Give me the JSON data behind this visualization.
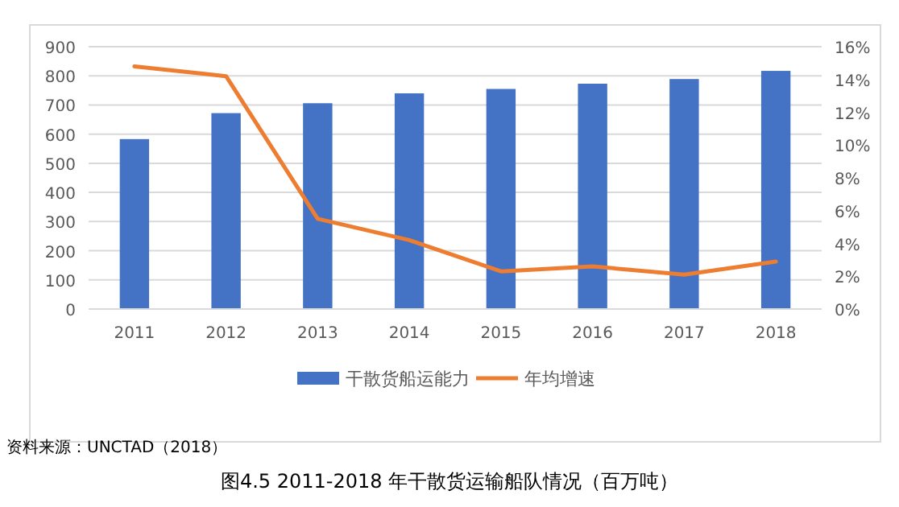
{
  "chart_data": {
    "type": "bar",
    "title": "图4.5 2011-2018 年干散货运输船队情况（百万吨）",
    "annotations": [
      "资料来源：UNCTAD（2018）"
    ],
    "categories": [
      "2011",
      "2012",
      "2013",
      "2014",
      "2015",
      "2016",
      "2017",
      "2018"
    ],
    "series": [
      {
        "name": "干散货船运能力",
        "color": "#4472c4",
        "values": [
          583,
          672,
          706,
          740,
          755,
          773,
          789,
          817
        ]
      },
      {
        "name": "年均增速",
        "type": "line",
        "axis": "y2",
        "color": "#ed7d31",
        "values": [
          14.8,
          14.2,
          5.5,
          4.2,
          2.3,
          2.6,
          2.1,
          2.9
        ]
      }
    ],
    "ylim": [
      0,
      900
    ],
    "yticks": [
      0,
      100,
      200,
      300,
      400,
      500,
      600,
      700,
      800,
      900
    ],
    "y2lim": [
      0,
      16
    ],
    "y2ticks": [
      {
        "value": 0,
        "label": "0%"
      },
      {
        "value": 2,
        "label": "2%"
      },
      {
        "value": 4,
        "label": "4%"
      },
      {
        "value": 6,
        "label": "6%"
      },
      {
        "value": 8,
        "label": "8%"
      },
      {
        "value": 10,
        "label": "10%"
      },
      {
        "value": 12,
        "label": "12%"
      },
      {
        "value": 14,
        "label": "14%"
      },
      {
        "value": 16,
        "label": "16%"
      }
    ],
    "grid": "y",
    "legend": "bottom",
    "marker": "none",
    "line_style": "solid"
  }
}
